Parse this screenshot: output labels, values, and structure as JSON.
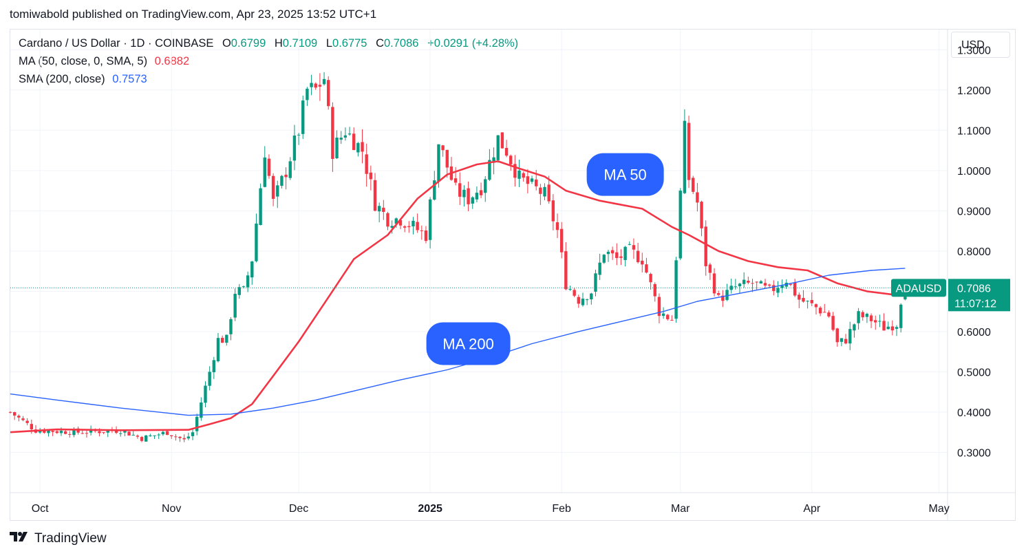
{
  "header": {
    "published": "tomiwabold published on TradingView.com, Apr 23, 2025 13:52 UTC+1"
  },
  "legend": {
    "symbol": "Cardano / US Dollar · 1D · COINBASE",
    "o_label": "O",
    "o_value": "0.6799",
    "h_label": "H",
    "h_value": "0.7109",
    "l_label": "L",
    "l_value": "0.6775",
    "c_label": "C",
    "c_value": "0.7086",
    "change": "+0.0291 (+4.28%)",
    "ma50_label": "MA (50, close, 0, SMA, 5)",
    "ma50_value": "0.6882",
    "sma200_label": "SMA (200, close)",
    "sma200_value": "0.7573"
  },
  "currency_button": "USD",
  "footer": {
    "brand": "TradingView",
    "logo": "tradingview-logo-icon"
  },
  "colors": {
    "up": "#089981",
    "down": "#f23645",
    "ma50": "#f23645",
    "ma200": "#2962ff",
    "callout": "#2962ff"
  },
  "chart_data": {
    "type": "candlestick",
    "title": "Cardano / US Dollar · 1D · COINBASE",
    "ylim": [
      0.2,
      1.35
    ],
    "y_ticks": [
      "0.3000",
      "0.4000",
      "0.5000",
      "0.6000",
      "0.7000",
      "0.8000",
      "0.9000",
      "1.0000",
      "1.1000",
      "1.2000",
      "1.3000"
    ],
    "y_tick_values": [
      0.3,
      0.4,
      0.5,
      0.6,
      0.7,
      0.8,
      0.9,
      1.0,
      1.1,
      1.2,
      1.3
    ],
    "x_range": [
      "2024-09-24",
      "2025-05-03"
    ],
    "x_ticks": [
      {
        "label": "Oct",
        "date": "2024-10-01",
        "bold": false
      },
      {
        "label": "Nov",
        "date": "2024-11-01",
        "bold": false
      },
      {
        "label": "Dec",
        "date": "2024-12-01",
        "bold": false
      },
      {
        "label": "2025",
        "date": "2025-01-01",
        "bold": true
      },
      {
        "label": "Feb",
        "date": "2025-02-01",
        "bold": false
      },
      {
        "label": "Mar",
        "date": "2025-03-01",
        "bold": false
      },
      {
        "label": "Apr",
        "date": "2025-04-01",
        "bold": false
      },
      {
        "label": "May",
        "date": "2025-05-01",
        "bold": false
      }
    ],
    "last_price": {
      "label": "ADAUSD",
      "value": "0.7086",
      "countdown": "11:07:12",
      "price": 0.7086
    },
    "annotations": [
      {
        "text": "MA 50",
        "date": "2025-02-16",
        "price": 0.99
      },
      {
        "text": "MA 200",
        "date": "2025-01-10",
        "price": 0.57
      }
    ],
    "ohlc_anchor": [
      [
        "2024-09-24",
        0.4
      ],
      [
        "2024-09-30",
        0.355
      ],
      [
        "2024-10-10",
        0.35
      ],
      [
        "2024-10-20",
        0.355
      ],
      [
        "2024-10-25",
        0.335
      ],
      [
        "2024-10-31",
        0.35
      ],
      [
        "2024-11-04",
        0.33
      ],
      [
        "2024-11-06",
        0.35
      ],
      [
        "2024-11-10",
        0.5
      ],
      [
        "2024-11-12",
        0.58
      ],
      [
        "2024-11-14",
        0.58
      ],
      [
        "2024-11-16",
        0.7
      ],
      [
        "2024-11-18",
        0.7
      ],
      [
        "2024-11-20",
        0.78
      ],
      [
        "2024-11-23",
        1.05
      ],
      [
        "2024-11-25",
        0.92
      ],
      [
        "2024-11-28",
        1.0
      ],
      [
        "2024-12-01",
        1.1
      ],
      [
        "2024-12-03",
        1.2
      ],
      [
        "2024-12-05",
        1.2
      ],
      [
        "2024-12-07",
        1.23
      ],
      [
        "2024-12-09",
        1.05
      ],
      [
        "2024-12-12",
        1.1
      ],
      [
        "2024-12-16",
        1.05
      ],
      [
        "2024-12-19",
        0.92
      ],
      [
        "2024-12-22",
        0.88
      ],
      [
        "2024-12-25",
        0.88
      ],
      [
        "2024-12-28",
        0.86
      ],
      [
        "2024-12-31",
        0.84
      ],
      [
        "2025-01-03",
        1.07
      ],
      [
        "2025-01-07",
        0.95
      ],
      [
        "2025-01-10",
        0.93
      ],
      [
        "2025-01-13",
        0.96
      ],
      [
        "2025-01-17",
        1.08
      ],
      [
        "2025-01-19",
        1.05
      ],
      [
        "2025-01-22",
        0.98
      ],
      [
        "2025-01-25",
        0.96
      ],
      [
        "2025-01-28",
        0.94
      ],
      [
        "2025-01-31",
        0.85
      ],
      [
        "2025-02-02",
        0.72
      ],
      [
        "2025-02-05",
        0.68
      ],
      [
        "2025-02-08",
        0.7
      ],
      [
        "2025-02-11",
        0.8
      ],
      [
        "2025-02-14",
        0.78
      ],
      [
        "2025-02-17",
        0.8
      ],
      [
        "2025-02-20",
        0.78
      ],
      [
        "2025-02-24",
        0.65
      ],
      [
        "2025-02-27",
        0.63
      ],
      [
        "2025-03-02",
        1.1
      ],
      [
        "2025-03-03",
        0.98
      ],
      [
        "2025-03-05",
        0.92
      ],
      [
        "2025-03-07",
        0.77
      ],
      [
        "2025-03-10",
        0.68
      ],
      [
        "2025-03-14",
        0.71
      ],
      [
        "2025-03-18",
        0.72
      ],
      [
        "2025-03-22",
        0.7
      ],
      [
        "2025-03-26",
        0.73
      ],
      [
        "2025-03-29",
        0.68
      ],
      [
        "2025-04-02",
        0.66
      ],
      [
        "2025-04-05",
        0.64
      ],
      [
        "2025-04-07",
        0.57
      ],
      [
        "2025-04-09",
        0.58
      ],
      [
        "2025-04-12",
        0.64
      ],
      [
        "2025-04-15",
        0.63
      ],
      [
        "2025-04-18",
        0.61
      ],
      [
        "2025-04-21",
        0.62
      ],
      [
        "2025-04-22",
        0.68
      ],
      [
        "2025-04-23",
        0.7086
      ]
    ],
    "series": [
      {
        "name": "MA (50, close, 0, SMA, 5)",
        "color": "#f23645",
        "points": [
          [
            "2024-09-24",
            0.35
          ],
          [
            "2024-10-05",
            0.357
          ],
          [
            "2024-10-20",
            0.355
          ],
          [
            "2024-11-05",
            0.356
          ],
          [
            "2024-11-10",
            0.37
          ],
          [
            "2024-11-15",
            0.385
          ],
          [
            "2024-11-20",
            0.42
          ],
          [
            "2024-11-25",
            0.49
          ],
          [
            "2024-12-01",
            0.575
          ],
          [
            "2024-12-08",
            0.685
          ],
          [
            "2024-12-14",
            0.78
          ],
          [
            "2024-12-22",
            0.84
          ],
          [
            "2024-12-29",
            0.93
          ],
          [
            "2025-01-05",
            0.99
          ],
          [
            "2025-01-12",
            1.015
          ],
          [
            "2025-01-17",
            1.023
          ],
          [
            "2025-01-22",
            1.005
          ],
          [
            "2025-01-28",
            0.985
          ],
          [
            "2025-02-02",
            0.95
          ],
          [
            "2025-02-10",
            0.925
          ],
          [
            "2025-02-20",
            0.905
          ],
          [
            "2025-02-27",
            0.86
          ],
          [
            "2025-03-03",
            0.84
          ],
          [
            "2025-03-10",
            0.8
          ],
          [
            "2025-03-17",
            0.775
          ],
          [
            "2025-03-24",
            0.76
          ],
          [
            "2025-03-31",
            0.752
          ],
          [
            "2025-04-07",
            0.72
          ],
          [
            "2025-04-14",
            0.7
          ],
          [
            "2025-04-23",
            0.6882
          ]
        ]
      },
      {
        "name": "SMA (200, close)",
        "color": "#2962ff",
        "points": [
          [
            "2024-09-24",
            0.445
          ],
          [
            "2024-10-05",
            0.43
          ],
          [
            "2024-10-20",
            0.41
          ],
          [
            "2024-11-05",
            0.392
          ],
          [
            "2024-11-15",
            0.395
          ],
          [
            "2024-11-25",
            0.41
          ],
          [
            "2024-12-05",
            0.43
          ],
          [
            "2024-12-15",
            0.455
          ],
          [
            "2024-12-25",
            0.48
          ],
          [
            "2025-01-05",
            0.505
          ],
          [
            "2025-01-15",
            0.535
          ],
          [
            "2025-01-25",
            0.57
          ],
          [
            "2025-02-05",
            0.6
          ],
          [
            "2025-02-15",
            0.625
          ],
          [
            "2025-02-25",
            0.65
          ],
          [
            "2025-03-05",
            0.675
          ],
          [
            "2025-03-15",
            0.695
          ],
          [
            "2025-03-25",
            0.715
          ],
          [
            "2025-04-05",
            0.74
          ],
          [
            "2025-04-15",
            0.752
          ],
          [
            "2025-04-23",
            0.7573
          ]
        ]
      }
    ]
  }
}
